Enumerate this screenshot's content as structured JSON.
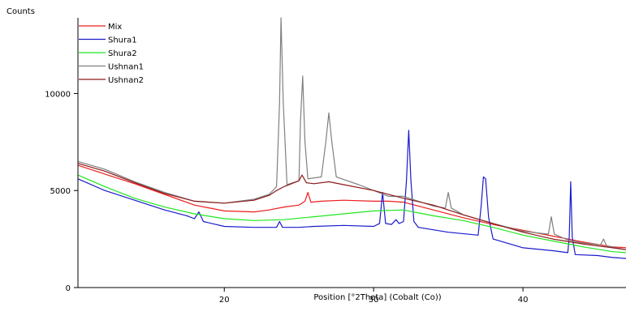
{
  "chart_data": {
    "type": "line",
    "title": "",
    "ylabel": "Counts",
    "xlabel": "Position [°2Theta] (Cobalt (Co))",
    "xlim": [
      10.2,
      46.9
    ],
    "ylim": [
      0,
      13900
    ],
    "x_ticks": [
      20,
      30,
      40
    ],
    "y_ticks": [
      0,
      5000,
      10000
    ],
    "grid": false,
    "legend_position": "top-left",
    "series": [
      {
        "name": "Mix",
        "color": "#ee1c1c",
        "points": [
          [
            10.2,
            6300
          ],
          [
            12,
            5850
          ],
          [
            14,
            5350
          ],
          [
            16,
            4800
          ],
          [
            18,
            4250
          ],
          [
            20,
            3950
          ],
          [
            22,
            3900
          ],
          [
            23,
            4000
          ],
          [
            24,
            4150
          ],
          [
            25,
            4250
          ],
          [
            25.4,
            4450
          ],
          [
            25.6,
            4900
          ],
          [
            25.8,
            4400
          ],
          [
            26.5,
            4450
          ],
          [
            28,
            4500
          ],
          [
            30,
            4450
          ],
          [
            31,
            4450
          ],
          [
            32,
            4400
          ],
          [
            34,
            4000
          ],
          [
            36,
            3600
          ],
          [
            38,
            3250
          ],
          [
            40,
            2950
          ],
          [
            42,
            2650
          ],
          [
            44,
            2350
          ],
          [
            46,
            2100
          ],
          [
            46.9,
            2050
          ]
        ]
      },
      {
        "name": "Shura1",
        "color": "#1a1acc",
        "points": [
          [
            10.2,
            5600
          ],
          [
            12,
            5000
          ],
          [
            14,
            4500
          ],
          [
            16,
            4000
          ],
          [
            17.5,
            3700
          ],
          [
            18,
            3550
          ],
          [
            18.3,
            3900
          ],
          [
            18.6,
            3400
          ],
          [
            20,
            3150
          ],
          [
            22,
            3100
          ],
          [
            23.5,
            3100
          ],
          [
            23.7,
            3400
          ],
          [
            23.9,
            3100
          ],
          [
            25,
            3100
          ],
          [
            26,
            3150
          ],
          [
            28,
            3200
          ],
          [
            30,
            3150
          ],
          [
            30.4,
            3300
          ],
          [
            30.6,
            4900
          ],
          [
            30.8,
            3300
          ],
          [
            31.2,
            3250
          ],
          [
            31.5,
            3500
          ],
          [
            31.7,
            3300
          ],
          [
            32,
            3400
          ],
          [
            32.2,
            5500
          ],
          [
            32.35,
            8100
          ],
          [
            32.5,
            5500
          ],
          [
            32.7,
            3400
          ],
          [
            33,
            3100
          ],
          [
            35,
            2850
          ],
          [
            37,
            2700
          ],
          [
            37.2,
            4200
          ],
          [
            37.35,
            5700
          ],
          [
            37.5,
            5600
          ],
          [
            37.7,
            3600
          ],
          [
            38,
            2500
          ],
          [
            40,
            2050
          ],
          [
            42,
            1900
          ],
          [
            43,
            1800
          ],
          [
            43.1,
            2600
          ],
          [
            43.2,
            5450
          ],
          [
            43.3,
            2600
          ],
          [
            43.5,
            1700
          ],
          [
            45,
            1650
          ],
          [
            46,
            1550
          ],
          [
            46.9,
            1500
          ]
        ]
      },
      {
        "name": "Shura2",
        "color": "#1ee61e",
        "points": [
          [
            10.2,
            5800
          ],
          [
            12,
            5200
          ],
          [
            14,
            4600
          ],
          [
            16,
            4150
          ],
          [
            18,
            3800
          ],
          [
            20,
            3550
          ],
          [
            22,
            3450
          ],
          [
            24,
            3500
          ],
          [
            26,
            3650
          ],
          [
            28,
            3800
          ],
          [
            30,
            3950
          ],
          [
            32,
            4000
          ],
          [
            34,
            3700
          ],
          [
            36,
            3450
          ],
          [
            38,
            3100
          ],
          [
            40,
            2700
          ],
          [
            42,
            2400
          ],
          [
            44,
            2100
          ],
          [
            46,
            1850
          ],
          [
            46.9,
            1800
          ]
        ]
      },
      {
        "name": "Ushnan1",
        "color": "#808080",
        "points": [
          [
            10.2,
            6500
          ],
          [
            12,
            6100
          ],
          [
            14,
            5450
          ],
          [
            16,
            4900
          ],
          [
            18,
            4450
          ],
          [
            20,
            4350
          ],
          [
            22,
            4550
          ],
          [
            23,
            4800
          ],
          [
            23.5,
            5200
          ],
          [
            23.7,
            9500
          ],
          [
            23.8,
            13900
          ],
          [
            23.95,
            9500
          ],
          [
            24.2,
            5300
          ],
          [
            25,
            5500
          ],
          [
            25.1,
            8500
          ],
          [
            25.25,
            10900
          ],
          [
            25.4,
            7500
          ],
          [
            25.6,
            5600
          ],
          [
            26.5,
            5700
          ],
          [
            26.8,
            7500
          ],
          [
            27,
            9000
          ],
          [
            27.2,
            7500
          ],
          [
            27.5,
            5700
          ],
          [
            29,
            5300
          ],
          [
            30,
            5000
          ],
          [
            31,
            4700
          ],
          [
            32,
            4700
          ],
          [
            33,
            4450
          ],
          [
            34,
            4200
          ],
          [
            34.8,
            4100
          ],
          [
            35,
            4900
          ],
          [
            35.2,
            4100
          ],
          [
            36,
            3750
          ],
          [
            38,
            3300
          ],
          [
            40,
            2900
          ],
          [
            41.7,
            2750
          ],
          [
            41.9,
            3650
          ],
          [
            42.1,
            2750
          ],
          [
            43,
            2450
          ],
          [
            44,
            2300
          ],
          [
            45.2,
            2200
          ],
          [
            45.4,
            2500
          ],
          [
            45.6,
            2150
          ],
          [
            46.9,
            1950
          ]
        ]
      },
      {
        "name": "Ushnan2",
        "color": "#8b1a1a",
        "points": [
          [
            10.2,
            6400
          ],
          [
            12,
            6000
          ],
          [
            14,
            5400
          ],
          [
            16,
            4850
          ],
          [
            18,
            4450
          ],
          [
            20,
            4350
          ],
          [
            22,
            4500
          ],
          [
            23,
            4750
          ],
          [
            23.5,
            5000
          ],
          [
            24,
            5200
          ],
          [
            25,
            5500
          ],
          [
            25.2,
            5800
          ],
          [
            25.5,
            5400
          ],
          [
            26,
            5350
          ],
          [
            27,
            5450
          ],
          [
            28,
            5300
          ],
          [
            30,
            5000
          ],
          [
            32,
            4600
          ],
          [
            34,
            4250
          ],
          [
            36,
            3750
          ],
          [
            38,
            3300
          ],
          [
            40,
            2850
          ],
          [
            42,
            2500
          ],
          [
            44,
            2250
          ],
          [
            46,
            2050
          ],
          [
            46.9,
            1950
          ]
        ]
      }
    ]
  }
}
